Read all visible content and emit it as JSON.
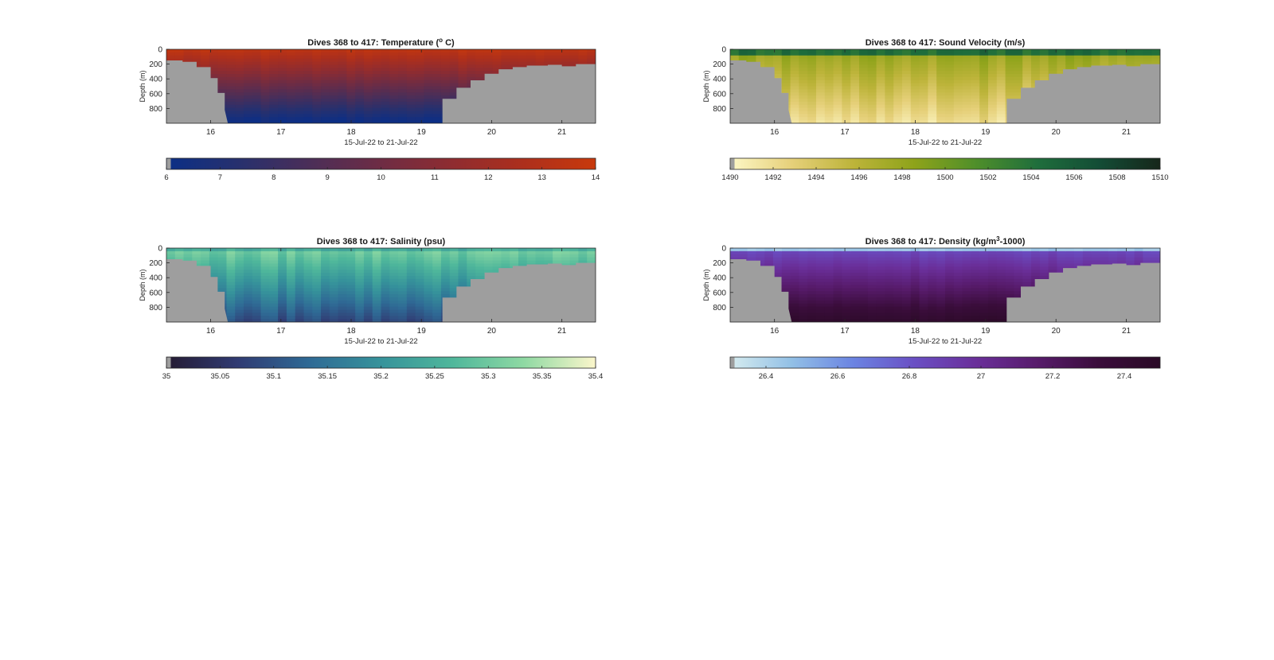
{
  "figure": {
    "panels": [
      {
        "id": "temperature",
        "title": "Dives 368 to 417: Temperature (° C)",
        "title_parts": [
          "Dives 368 to 417: Temperature (",
          "o",
          " C)"
        ],
        "ylabel": "Depth (m)",
        "xlabel": "15-Jul-22 to 21-Jul-22",
        "colorbar_ticks": [
          "6",
          "7",
          "8",
          "9",
          "10",
          "11",
          "12",
          "13",
          "14"
        ],
        "colormap": [
          "#0b2f86",
          "#27306e",
          "#4b2e58",
          "#6e2c44",
          "#8f2c30",
          "#ad2f1c",
          "#c8390c"
        ],
        "surface_color": "#c23d12",
        "deep_color": "#11347f"
      },
      {
        "id": "sound_velocity",
        "title": "Dives 368 to 417: Sound Velocity (m/s)",
        "title_parts": [
          "Dives 368 to 417: Sound Velocity (m/s)"
        ],
        "ylabel": "Depth (m)",
        "xlabel": "15-Jul-22 to 21-Jul-22",
        "colorbar_ticks": [
          "1490",
          "1492",
          "1494",
          "1496",
          "1498",
          "1500",
          "1502",
          "1504",
          "1506",
          "1508",
          "1510"
        ],
        "colormap": [
          "#fdf8c6",
          "#e6d07a",
          "#bdb43a",
          "#8ea31a",
          "#4f8f2a",
          "#1f6e3c",
          "#134d36",
          "#16261a"
        ],
        "surface_color": "#2f7d2a",
        "deep_color": "#e9dc85"
      },
      {
        "id": "salinity",
        "title": "Dives 368 to 417: Salinity (psu)",
        "title_parts": [
          "Dives 368 to 417: Salinity (psu)"
        ],
        "ylabel": "Depth (m)",
        "xlabel": "15-Jul-22 to 21-Jul-22",
        "colorbar_ticks": [
          "35",
          "35.05",
          "35.1",
          "35.15",
          "35.2",
          "35.25",
          "35.3",
          "35.35",
          "35.4"
        ],
        "colormap": [
          "#251b33",
          "#303b73",
          "#2f6a95",
          "#36939b",
          "#4fb79b",
          "#8fd9a3",
          "#fbf6cb"
        ],
        "surface_color": "#8fd9a3",
        "deep_color": "#303b73"
      },
      {
        "id": "density",
        "title": "Dives 368 to 417: Density (kg/m³-1000)",
        "title_parts": [
          "Dives 368 to 417: Density (kg/m",
          "3",
          "-1000)"
        ],
        "ylabel": "Depth (m)",
        "xlabel": "15-Jul-22 to 21-Jul-22",
        "colorbar_ticks": [
          "26.4",
          "26.6",
          "26.8",
          "27",
          "27.2",
          "27.4"
        ],
        "colormap": [
          "#d6ecef",
          "#92c0e6",
          "#6b84e2",
          "#6a4fc4",
          "#6a2f9a",
          "#571b6b",
          "#3a0d3b",
          "#2a0a26"
        ],
        "surface_color": "#a9c6ee",
        "deep_color": "#2d0a2a"
      }
    ]
  },
  "chart_data": [
    {
      "type": "heatmap",
      "title": "Dives 368 to 417: Temperature (° C)",
      "xlabel": "15-Jul-22 to 21-Jul-22",
      "ylabel": "Depth (m)",
      "x_ticks": [
        "16",
        "17",
        "18",
        "19",
        "20",
        "21"
      ],
      "y_ticks": [
        "0",
        "200",
        "400",
        "600",
        "800"
      ],
      "xlim": [
        15.37,
        21.48
      ],
      "ylim": [
        1000,
        0
      ],
      "colorbar": {
        "label_ticks": [
          6,
          7,
          8,
          9,
          10,
          11,
          12,
          13,
          14
        ],
        "range": [
          6,
          14
        ]
      },
      "seafloor_profile": {
        "x": [
          15.4,
          15.6,
          15.8,
          16.0,
          16.1,
          16.2,
          19.2,
          19.3,
          19.5,
          19.7,
          19.9,
          20.1,
          20.3,
          20.5,
          20.8,
          21.0,
          21.2,
          21.48
        ],
        "depth": [
          150,
          170,
          240,
          390,
          590,
          820,
          1000,
          670,
          520,
          420,
          330,
          270,
          240,
          220,
          210,
          230,
          200,
          180
        ]
      },
      "surface_value": 13.5,
      "deep_value": 6.5
    },
    {
      "type": "heatmap",
      "title": "Dives 368 to 417: Sound Velocity (m/s)",
      "xlabel": "15-Jul-22 to 21-Jul-22",
      "ylabel": "Depth (m)",
      "x_ticks": [
        "16",
        "17",
        "18",
        "19",
        "20",
        "21"
      ],
      "y_ticks": [
        "0",
        "200",
        "400",
        "600",
        "800"
      ],
      "xlim": [
        15.37,
        21.48
      ],
      "ylim": [
        1000,
        0
      ],
      "colorbar": {
        "label_ticks": [
          1490,
          1492,
          1494,
          1496,
          1498,
          1500,
          1502,
          1504,
          1506,
          1508,
          1510
        ],
        "range": [
          1490,
          1510
        ]
      },
      "seafloor_profile": {
        "x": [
          15.4,
          15.6,
          15.8,
          16.0,
          16.1,
          16.2,
          19.2,
          19.3,
          19.5,
          19.7,
          19.9,
          20.1,
          20.3,
          20.5,
          20.8,
          21.0,
          21.2,
          21.48
        ],
        "depth": [
          150,
          170,
          240,
          390,
          590,
          820,
          1000,
          670,
          520,
          420,
          330,
          270,
          240,
          220,
          210,
          230,
          200,
          180
        ]
      },
      "surface_value": 1502,
      "deep_value": 1495
    },
    {
      "type": "heatmap",
      "title": "Dives 368 to 417: Salinity (psu)",
      "xlabel": "15-Jul-22 to 21-Jul-22",
      "ylabel": "Depth (m)",
      "x_ticks": [
        "16",
        "17",
        "18",
        "19",
        "20",
        "21"
      ],
      "y_ticks": [
        "0",
        "200",
        "400",
        "600",
        "800"
      ],
      "xlim": [
        15.37,
        21.48
      ],
      "ylim": [
        1000,
        0
      ],
      "colorbar": {
        "label_ticks": [
          35,
          35.05,
          35.1,
          35.15,
          35.2,
          35.25,
          35.3,
          35.35,
          35.4
        ],
        "range": [
          35,
          35.4
        ]
      },
      "seafloor_profile": {
        "x": [
          15.4,
          15.6,
          15.8,
          16.0,
          16.1,
          16.2,
          19.2,
          19.3,
          19.5,
          19.7,
          19.9,
          20.1,
          20.3,
          20.5,
          20.8,
          21.0,
          21.2,
          21.48
        ],
        "depth": [
          150,
          170,
          240,
          390,
          590,
          820,
          1000,
          670,
          520,
          420,
          330,
          270,
          240,
          220,
          210,
          230,
          200,
          180
        ]
      },
      "surface_value": 35.32,
      "deep_value": 35.12
    },
    {
      "type": "heatmap",
      "title": "Dives 368 to 417: Density (kg/m³-1000)",
      "xlabel": "15-Jul-22 to 21-Jul-22",
      "ylabel": "Depth (m)",
      "x_ticks": [
        "16",
        "17",
        "18",
        "19",
        "20",
        "21"
      ],
      "y_ticks": [
        "0",
        "200",
        "400",
        "600",
        "800"
      ],
      "xlim": [
        15.37,
        21.48
      ],
      "ylim": [
        1000,
        0
      ],
      "colorbar": {
        "label_ticks": [
          26.4,
          26.6,
          26.8,
          27,
          27.2,
          27.4
        ],
        "range": [
          26.3,
          27.5
        ]
      },
      "seafloor_profile": {
        "x": [
          15.4,
          15.6,
          15.8,
          16.0,
          16.1,
          16.2,
          19.2,
          19.3,
          19.5,
          19.7,
          19.9,
          20.1,
          20.3,
          20.5,
          20.8,
          21.0,
          21.2,
          21.48
        ],
        "depth": [
          150,
          170,
          240,
          390,
          590,
          820,
          1000,
          670,
          520,
          420,
          330,
          270,
          240,
          220,
          210,
          230,
          200,
          180
        ]
      },
      "surface_value": 26.5,
      "deep_value": 27.45
    }
  ]
}
